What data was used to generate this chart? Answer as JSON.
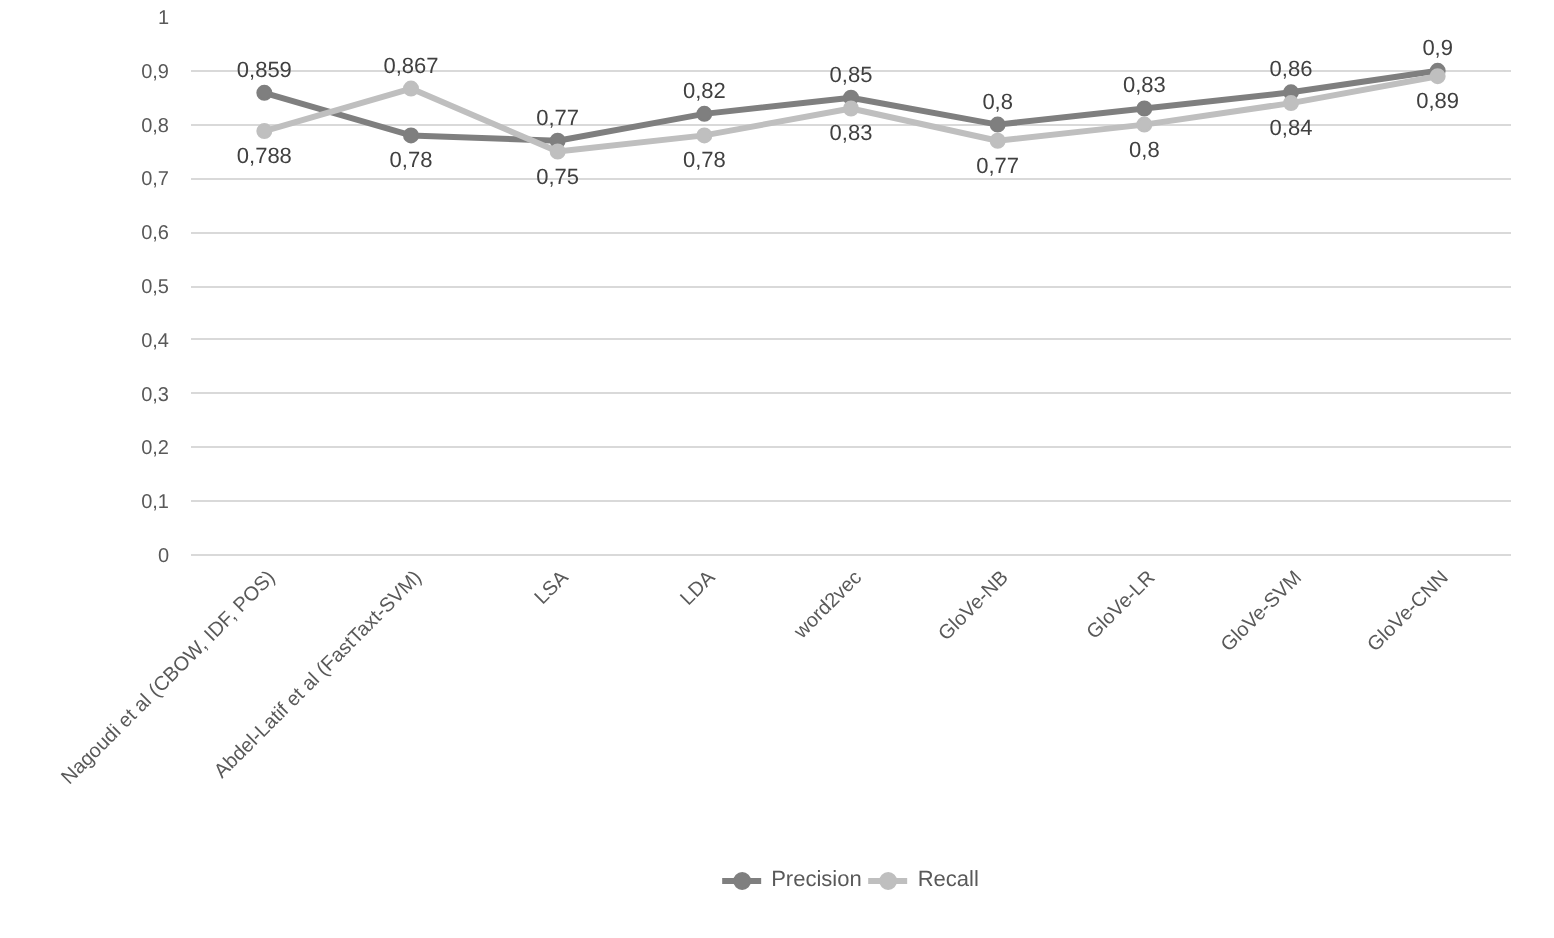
{
  "chart_data": {
    "type": "line",
    "categories": [
      "Nagoudi et al (CBOW, IDF, POS)",
      "Abdel-Latif et al (FastTaxt-SVM)",
      "LSA",
      "LDA",
      "word2vec",
      "GloVe-NB",
      "GloVe-LR",
      "GloVe-SVM",
      "GloVe-CNN"
    ],
    "series": [
      {
        "name": "Precision",
        "color": "#7f7f7f",
        "values": [
          0.859,
          0.78,
          0.77,
          0.82,
          0.85,
          0.8,
          0.83,
          0.86,
          0.9
        ],
        "value_labels": [
          "0,859",
          "0,78",
          "0,77",
          "0,82",
          "0,85",
          "0,8",
          "0,83",
          "0,86",
          "0,9"
        ]
      },
      {
        "name": "Recall",
        "color": "#bfbfbf",
        "values": [
          0.788,
          0.867,
          0.75,
          0.78,
          0.83,
          0.77,
          0.8,
          0.84,
          0.89
        ],
        "value_labels": [
          "0,788",
          "0,867",
          "0,75",
          "0,78",
          "0,83",
          "0,77",
          "0,8",
          "0,84",
          "0,89"
        ]
      }
    ],
    "ylim": [
      0,
      1
    ],
    "yticks": [
      0,
      {
        "value": 0.1,
        "label": "0,1"
      },
      {
        "value": 0.2,
        "label": "0,2"
      },
      {
        "value": 0.3,
        "label": "0,3"
      },
      {
        "value": 0.4,
        "label": "0,4"
      },
      {
        "value": 0.5,
        "label": "0,5"
      },
      {
        "value": 0.6,
        "label": "0,6"
      },
      {
        "value": 0.7,
        "label": "0,7"
      },
      {
        "value": 0.8,
        "label": "0,8"
      },
      {
        "value": 0.9,
        "label": "0,9"
      },
      1
    ],
    "grid": "y",
    "legend": "bottom",
    "marker": "circle",
    "line_style": "solid"
  }
}
